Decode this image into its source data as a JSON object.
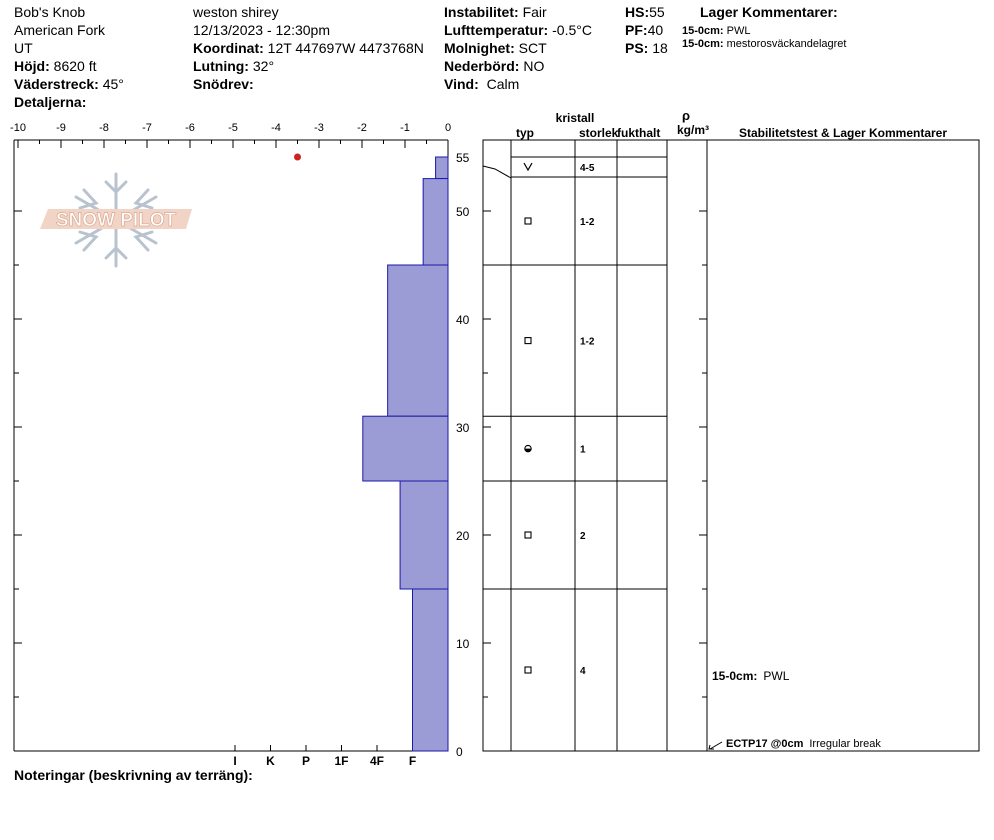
{
  "header": {
    "location": "Bob's Knob",
    "area": "American Fork",
    "state": "UT",
    "elevation_label": "Höjd:",
    "elevation_value": "8620 ft",
    "aspect_label": "Väderstreck:",
    "aspect_value": "45°",
    "details_label": "Detaljerna:",
    "observer": "weston shirey",
    "datetime": "12/13/2023 - 12:30pm",
    "coord_label": "Koordinat:",
    "coord_value": "12T 447697W 4473768N",
    "slope_label": "Lutning:",
    "slope_value": "32°",
    "wind_loading_label": "Snödrev:",
    "stability_label": "Instabilitet:",
    "stability_value": "Fair",
    "air_temp_label": "Lufttemperatur:",
    "air_temp_value": "-0.5°C",
    "sky_label": "Molnighet:",
    "sky_value": "SCT",
    "precip_label": "Nederbörd:",
    "precip_value": "NO",
    "wind_label": "Vind:",
    "wind_value": "Calm",
    "hs_label": "HS:",
    "hs_value": "55",
    "pf_label": "PF:",
    "pf_value": "40",
    "ps_label": "PS:",
    "ps_value": "18",
    "layer_comments_title": "Lager Kommentarer:",
    "layer_comments": [
      {
        "depth": "15-0cm:",
        "text": "PWL"
      },
      {
        "depth": "15-0cm:",
        "text": "mestorosväckandelagret"
      }
    ]
  },
  "logo": {
    "text": "SNOW PILOT"
  },
  "columns": {
    "crystal": "kristall",
    "type": "typ",
    "size": "storlek",
    "moisture": "fukthalt",
    "rho": "ρ",
    "density_unit": "kg/m³",
    "stability_comments": "Stabilitetstest & Lager Kommentarer"
  },
  "notes_label": "Noteringar (beskrivning av terräng):",
  "chart_data": {
    "type": "bar",
    "title": "",
    "temperature_axis": {
      "ticks": [
        -10,
        -9,
        -8,
        -7,
        -6,
        -5,
        -4,
        -3,
        -2,
        -1,
        0
      ],
      "unit": "°C"
    },
    "depth_axis": {
      "range": [
        0,
        55
      ],
      "ticks": [
        0,
        10,
        20,
        30,
        40,
        50,
        55
      ],
      "unit": "cm"
    },
    "hardness_axis": {
      "ticks": [
        "I",
        "K",
        "P",
        "1F",
        "4F",
        "F"
      ]
    },
    "hardness_scale": {
      "F": 1,
      "4F": 2,
      "1F": 3,
      "P": 4,
      "K": 5,
      "I": 6
    },
    "layers": [
      {
        "top": 55,
        "bottom": 53,
        "hardness": 0.35,
        "grain_type": "surface-hoar",
        "grain_size": "4-5"
      },
      {
        "top": 53,
        "bottom": 45,
        "hardness": 0.7,
        "grain_type": "faceted",
        "grain_size": "1-2"
      },
      {
        "top": 45,
        "bottom": 31,
        "hardness": 1.7,
        "grain_type": "faceted",
        "grain_size": "1-2"
      },
      {
        "top": 31,
        "bottom": 25,
        "hardness": 2.4,
        "grain_type": "rounding-faceted",
        "grain_size": "1"
      },
      {
        "top": 25,
        "bottom": 15,
        "hardness": 1.35,
        "grain_type": "faceted",
        "grain_size": "2"
      },
      {
        "top": 15,
        "bottom": 0,
        "hardness": 1.0,
        "grain_type": "faceted",
        "grain_size": "4"
      }
    ],
    "temperature_points": [
      {
        "depth": 55,
        "temp": -3.5
      }
    ],
    "bar_color": "#9b9bd6",
    "bar_edge_color": "#1a1aa8",
    "temp_point_color": "#cc2222",
    "layer_annotations": [
      {
        "depth_range": "15-0cm:",
        "text": "PWL"
      }
    ],
    "stability_tests": [
      {
        "code": "ECTP17 @0cm",
        "comment": "Irregular break",
        "depth": 0
      }
    ]
  }
}
